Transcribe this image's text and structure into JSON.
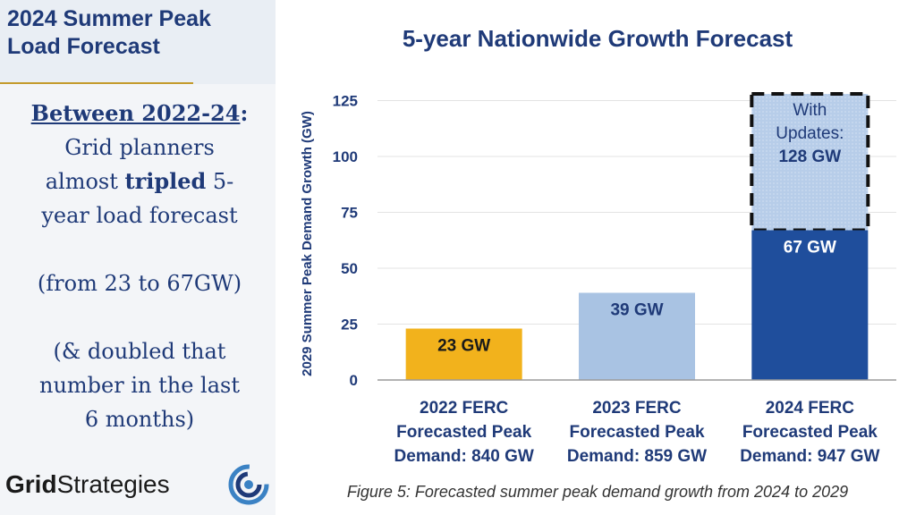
{
  "slide": {
    "title_line1": "2024 Summer Peak",
    "title_line2": "Load Forecast",
    "lead": "Between 2022-24",
    "lead_colon": ":",
    "line1": "Grid planners",
    "line2_pre": "almost ",
    "line2_bold": "tripled",
    "line2_post": " 5-",
    "line3": "year load forecast",
    "line4": "(from 23 to 67GW)",
    "line5": "(& doubled that",
    "line6": "number in the last",
    "line7": "6 months)"
  },
  "logo": {
    "bold": "Grid",
    "regular": "Strategies",
    "icon": "grid-strategies-logo-icon"
  },
  "caption": "Figure 5: Forecasted summer peak demand growth from 2024 to 2029",
  "chart_data": {
    "type": "bar",
    "title": "5-year Nationwide Growth Forecast",
    "xlabel": "",
    "ylabel": "2029 Summer Peak Demand Growth (GW)",
    "ylim": [
      0,
      130
    ],
    "yticks": [
      0,
      25,
      50,
      75,
      100,
      125
    ],
    "categories": [
      [
        "2022 FERC",
        "Forecasted Peak",
        "Demand: 840 GW"
      ],
      [
        "2023 FERC",
        "Forecasted Peak",
        "Demand: 859 GW"
      ],
      [
        "2024 FERC",
        "Forecasted Peak",
        "Demand: 947 GW"
      ]
    ],
    "values": [
      23,
      39,
      67
    ],
    "labels": [
      "23 GW",
      "39 GW",
      "67 GW"
    ],
    "colors": [
      "#f2b21c",
      "#a9c3e3",
      "#1f4e9c"
    ],
    "label_colors": [
      "#1a1a1a",
      "#1f3a78",
      "#ffffff"
    ],
    "update": {
      "category_index": 2,
      "value": 128,
      "label": [
        "With",
        "Updates:",
        "128 GW"
      ],
      "color": "#b7cde9"
    }
  }
}
